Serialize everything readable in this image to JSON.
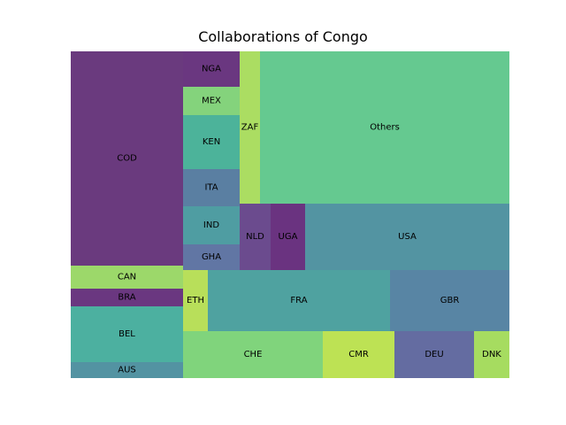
{
  "chart_data": {
    "type": "treemap",
    "title": "Collaborations of Congo",
    "cells": [
      {
        "label": "COD",
        "value": 3055,
        "color": "#6a3a7e"
      },
      {
        "label": "CAN",
        "value": 328,
        "color": "#9cd86a"
      },
      {
        "label": "BRA",
        "value": 233,
        "color": "#6a3780"
      },
      {
        "label": "BEL",
        "value": 807,
        "color": "#4cb0a0"
      },
      {
        "label": "AUS",
        "value": 226,
        "color": "#5393a2"
      },
      {
        "label": "NGA",
        "value": 254,
        "color": "#6a3780"
      },
      {
        "label": "MEX",
        "value": 207,
        "color": "#84d37c"
      },
      {
        "label": "KEN",
        "value": 382,
        "color": "#4cb39a"
      },
      {
        "label": "ITA",
        "value": 272,
        "color": "#5a7fa2"
      },
      {
        "label": "IND",
        "value": 277,
        "color": "#4f9da2"
      },
      {
        "label": "GHA",
        "value": 180,
        "color": "#6176a4"
      },
      {
        "label": "ZAF",
        "value": 233,
        "color": "#abdd62"
      },
      {
        "label": "Others",
        "value": 2396,
        "color": "#65c990"
      },
      {
        "label": "NLD",
        "value": 223,
        "color": "#6b4b8e"
      },
      {
        "label": "UGA",
        "value": 244,
        "color": "#6a3380"
      },
      {
        "label": "USA",
        "value": 1171,
        "color": "#5394a2"
      },
      {
        "label": "ETH",
        "value": 187,
        "color": "#b8df5a"
      },
      {
        "label": "FRA",
        "value": 1378,
        "color": "#4fa2a0"
      },
      {
        "label": "GBR",
        "value": 902,
        "color": "#5885a4"
      },
      {
        "label": "CHE",
        "value": 1114,
        "color": "#80d47c"
      },
      {
        "label": "CMR",
        "value": 569,
        "color": "#bde254"
      },
      {
        "label": "DEU",
        "value": 636,
        "color": "#646ca1"
      },
      {
        "label": "DNK",
        "value": 280,
        "color": "#a6dc60"
      }
    ]
  }
}
